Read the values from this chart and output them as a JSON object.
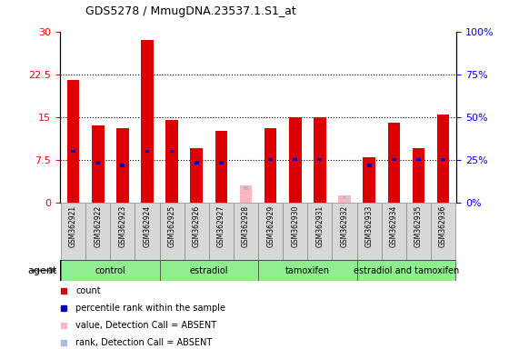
{
  "title": "GDS5278 / MmugDNA.23537.1.S1_at",
  "samples": [
    "GSM362921",
    "GSM362922",
    "GSM362923",
    "GSM362924",
    "GSM362925",
    "GSM362926",
    "GSM362927",
    "GSM362928",
    "GSM362929",
    "GSM362930",
    "GSM362931",
    "GSM362932",
    "GSM362933",
    "GSM362934",
    "GSM362935",
    "GSM362936"
  ],
  "count_values": [
    21.5,
    13.5,
    13.0,
    28.5,
    14.5,
    9.5,
    12.5,
    0.0,
    13.0,
    15.0,
    15.0,
    1.0,
    8.0,
    14.0,
    9.5,
    15.5
  ],
  "rank_values": [
    9.0,
    7.0,
    6.5,
    9.0,
    9.0,
    7.0,
    7.0,
    0.0,
    7.5,
    7.5,
    7.5,
    0.0,
    6.5,
    7.5,
    7.5,
    7.5
  ],
  "absent_count": [
    0,
    0,
    0,
    0,
    0,
    0,
    0,
    3.0,
    0,
    0,
    0,
    1.2,
    0,
    0,
    0,
    0
  ],
  "absent_rank": [
    0,
    0,
    0,
    0,
    0,
    0,
    0,
    2.5,
    0,
    0,
    0,
    0.8,
    0,
    0,
    0,
    0
  ],
  "groups": [
    {
      "label": "control",
      "start": 0,
      "end": 3,
      "color": "#90EE90"
    },
    {
      "label": "estradiol",
      "start": 4,
      "end": 7,
      "color": "#90EE90"
    },
    {
      "label": "tamoxifen",
      "start": 8,
      "end": 11,
      "color": "#90EE90"
    },
    {
      "label": "estradiol and tamoxifen",
      "start": 12,
      "end": 15,
      "color": "#90EE90"
    }
  ],
  "ylim_left": [
    0,
    30
  ],
  "ylim_right": [
    0,
    100
  ],
  "yticks_left": [
    0,
    7.5,
    15,
    22.5,
    30
  ],
  "yticks_right": [
    0,
    25,
    50,
    75,
    100
  ],
  "bar_color_red": "#DD0000",
  "bar_color_blue": "#0000BB",
  "absent_count_color": "#FFB6C1",
  "absent_rank_color": "#AABBDD",
  "bar_width": 0.5,
  "rank_bar_width": 0.18,
  "rank_bar_height": 0.55
}
